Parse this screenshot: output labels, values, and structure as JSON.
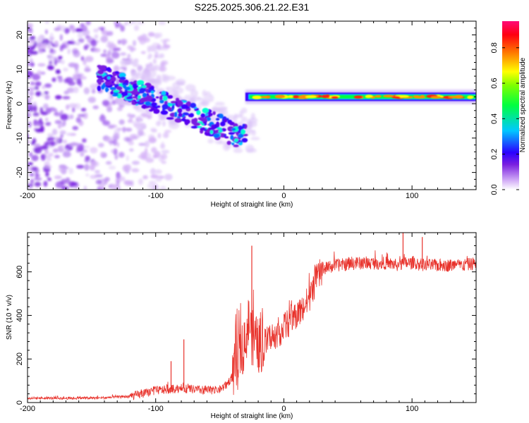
{
  "title": "S225.2025.306.21.22.E31",
  "chart_data": [
    {
      "type": "heatmap",
      "xlabel": "Height of straight line (km)",
      "ylabel": "Frequency (Hz)",
      "xlim": [
        -200,
        150
      ],
      "ylim": [
        -25,
        24
      ],
      "xticks": [
        -200,
        -100,
        0,
        100
      ],
      "yticks": [
        -20,
        -10,
        0,
        10,
        20
      ],
      "colorbar": {
        "label": "Normalized spectral amplitude",
        "range": [
          0,
          0.95
        ],
        "ticks": [
          0.0,
          0.2,
          0.4,
          0.6,
          0.8
        ]
      },
      "features": [
        {
          "name": "scattered noise",
          "x_range": [
            -200,
            -130
          ],
          "freq_range": [
            -25,
            24
          ],
          "amplitude": 0.05
        },
        {
          "name": "descending band",
          "x_range": [
            -145,
            -30
          ],
          "freq_start": 8,
          "freq_end": -10,
          "amplitude": 0.3
        },
        {
          "name": "steady tone",
          "x_range": [
            -30,
            150
          ],
          "freq": 2,
          "amplitude": 0.85
        }
      ]
    },
    {
      "type": "line",
      "xlabel": "Height of straight line (km)",
      "ylabel": "SNR (10 * v/v)",
      "xlim": [
        -200,
        150
      ],
      "ylim": [
        0,
        780
      ],
      "xticks": [
        -200,
        -100,
        0,
        100
      ],
      "yticks": [
        0,
        200,
        400,
        600
      ],
      "series": [
        {
          "name": "SNR",
          "color": "#e8312a",
          "x": [
            -200,
            -180,
            -160,
            -140,
            -120,
            -110,
            -100,
            -90,
            -80,
            -70,
            -60,
            -50,
            -45,
            -40,
            -35,
            -30,
            -27,
            -25,
            -20,
            -15,
            -10,
            -5,
            0,
            5,
            10,
            15,
            20,
            25,
            30,
            40,
            50,
            60,
            70,
            80,
            90,
            95,
            100,
            110,
            120,
            130,
            140,
            150
          ],
          "values": [
            20,
            20,
            20,
            22,
            28,
            40,
            55,
            60,
            65,
            60,
            55,
            60,
            80,
            120,
            200,
            300,
            380,
            300,
            260,
            270,
            300,
            320,
            340,
            380,
            400,
            430,
            480,
            560,
            610,
            630,
            635,
            640,
            640,
            640,
            630,
            640,
            640,
            630,
            630,
            630,
            630,
            640
          ]
        }
      ],
      "spikes": [
        {
          "x": -88,
          "value": 190
        },
        {
          "x": -78,
          "value": 290
        },
        {
          "x": -25,
          "value": 720
        },
        {
          "x": 93,
          "value": 780
        },
        {
          "x": 108,
          "value": 760
        }
      ]
    }
  ]
}
